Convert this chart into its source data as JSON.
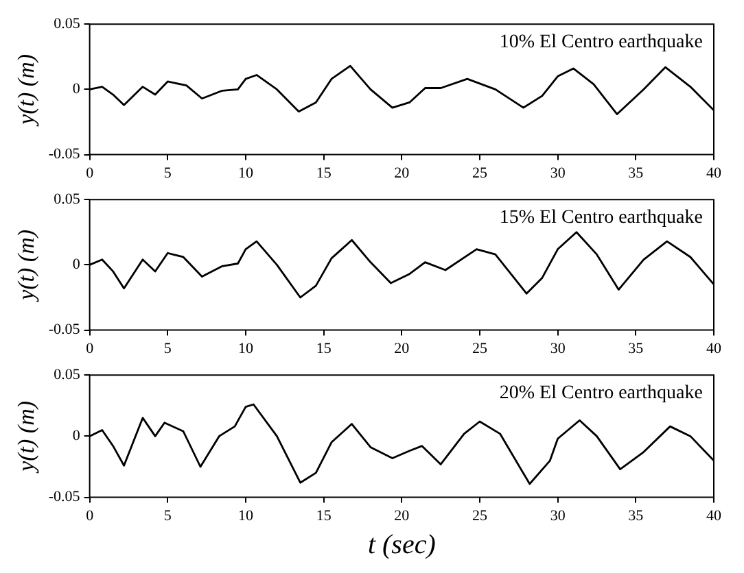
{
  "chart_data": [
    {
      "type": "line",
      "ylabel": "y(t) (m)",
      "annotations": [
        "10% El Centro earthquake"
      ],
      "xlim": [
        0,
        40
      ],
      "xticks": [
        0,
        5,
        10,
        15,
        20,
        25,
        30,
        35,
        40
      ],
      "ylim": [
        -0.05,
        0.05
      ],
      "yticks": [
        -0.05,
        0,
        0.05
      ],
      "grid": false,
      "legend": false,
      "marker": "none",
      "series": [
        {
          "color": "#000000",
          "x": [
            0,
            0.8,
            1.5,
            2.2,
            3.4,
            4.2,
            5,
            6.2,
            7.2,
            8.5,
            9.5,
            10,
            10.7,
            12,
            13.4,
            14.5,
            15.5,
            16.7,
            18,
            19.4,
            20.5,
            21.5,
            22.5,
            24.2,
            26,
            27.8,
            29,
            30,
            31,
            32.3,
            33.8,
            35.5,
            36.9,
            38.5,
            40
          ],
          "values": [
            0,
            0.002,
            -0.004,
            -0.012,
            0.002,
            -0.004,
            0.006,
            0.003,
            -0.007,
            -0.001,
            0,
            0.008,
            0.011,
            0,
            -0.017,
            -0.01,
            0.008,
            0.018,
            0,
            -0.014,
            -0.01,
            0.001,
            0.001,
            0.008,
            0,
            -0.014,
            -0.005,
            0.01,
            0.016,
            0.004,
            -0.019,
            0,
            0.017,
            0.002,
            -0.016
          ]
        }
      ]
    },
    {
      "type": "line",
      "ylabel": "y(t) (m)",
      "annotations": [
        "15% El Centro earthquake"
      ],
      "xlim": [
        0,
        40
      ],
      "xticks": [
        0,
        5,
        10,
        15,
        20,
        25,
        30,
        35,
        40
      ],
      "ylim": [
        -0.05,
        0.05
      ],
      "yticks": [
        -0.05,
        0,
        0.05
      ],
      "grid": false,
      "legend": false,
      "marker": "none",
      "series": [
        {
          "color": "#000000",
          "x": [
            0,
            0.8,
            1.5,
            2.2,
            3.4,
            4.2,
            5,
            6,
            7.2,
            8.5,
            9.5,
            10,
            10.7,
            12,
            13.5,
            14.5,
            15.5,
            16.8,
            18,
            19.3,
            20.5,
            21.5,
            22.8,
            24.8,
            26,
            28,
            29,
            30,
            31.2,
            32.5,
            33.9,
            35.5,
            37,
            38.5,
            40
          ],
          "values": [
            0,
            0.004,
            -0.005,
            -0.018,
            0.004,
            -0.005,
            0.009,
            0.006,
            -0.009,
            -0.001,
            0.001,
            0.012,
            0.018,
            0,
            -0.025,
            -0.016,
            0.005,
            0.019,
            0.002,
            -0.014,
            -0.007,
            0.002,
            -0.004,
            0.012,
            0.008,
            -0.022,
            -0.01,
            0.012,
            0.025,
            0.008,
            -0.019,
            0.004,
            0.018,
            0.006,
            -0.015
          ]
        }
      ]
    },
    {
      "type": "line",
      "xlabel": "t (sec)",
      "ylabel": "y(t) (m)",
      "annotations": [
        "20% El Centro earthquake"
      ],
      "xlim": [
        0,
        40
      ],
      "xticks": [
        0,
        5,
        10,
        15,
        20,
        25,
        30,
        35,
        40
      ],
      "ylim": [
        -0.05,
        0.05
      ],
      "yticks": [
        -0.05,
        0,
        0.05
      ],
      "grid": false,
      "legend": false,
      "marker": "none",
      "series": [
        {
          "color": "#000000",
          "x": [
            0,
            0.8,
            1.5,
            2.2,
            3.4,
            4.2,
            4.8,
            6,
            7.1,
            8.3,
            9.3,
            10,
            10.5,
            12,
            13.5,
            14.5,
            15.5,
            16.8,
            18,
            19.4,
            20.5,
            21.3,
            22.5,
            24,
            25,
            26.3,
            28.2,
            29.5,
            30,
            31.4,
            32.5,
            34,
            35.5,
            37.2,
            38.5,
            40
          ],
          "values": [
            0,
            0.005,
            -0.008,
            -0.024,
            0.015,
            0,
            0.011,
            0.004,
            -0.025,
            0,
            0.008,
            0.024,
            0.026,
            0,
            -0.038,
            -0.03,
            -0.005,
            0.01,
            -0.009,
            -0.018,
            -0.012,
            -0.008,
            -0.023,
            0.002,
            0.012,
            0.002,
            -0.039,
            -0.02,
            -0.002,
            0.013,
            0,
            -0.027,
            -0.013,
            0.008,
            0,
            -0.02
          ]
        }
      ]
    }
  ]
}
